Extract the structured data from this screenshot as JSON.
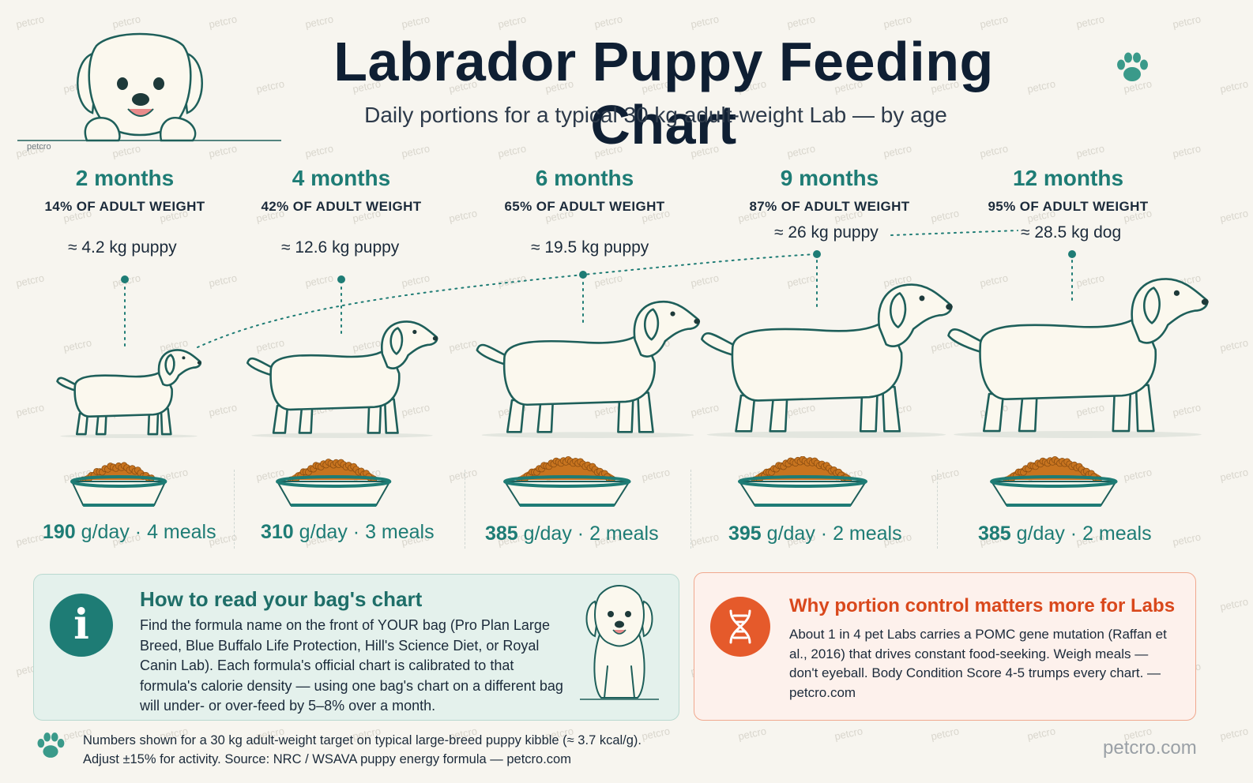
{
  "header": {
    "title": "Labrador Puppy Feeding Chart",
    "subtitle": "Daily portions for a typical 30 kg adult-weight Lab — by age",
    "logo_small": "petcro"
  },
  "stages": [
    {
      "age": "2 months",
      "pct": "14% OF ADULT WEIGHT",
      "weight": "≈ 4.2 kg puppy",
      "grams": "190",
      "unit": "g/day",
      "meals": "· 4 meals",
      "portion_fraction": 0.48
    },
    {
      "age": "4 months",
      "pct": "42% OF ADULT WEIGHT",
      "weight": "≈ 12.6 kg puppy",
      "grams": "310",
      "unit": "g/day",
      "meals": "· 3 meals",
      "portion_fraction": 0.78
    },
    {
      "age": "6 months",
      "pct": "65% OF ADULT WEIGHT",
      "weight": "≈ 19.5 kg puppy",
      "grams": "385",
      "unit": "g/day",
      "meals": "· 2 meals",
      "portion_fraction": 0.97
    },
    {
      "age": "9 months",
      "pct": "87% OF ADULT WEIGHT",
      "weight": "≈ 26 kg puppy",
      "grams": "395",
      "unit": "g/day",
      "meals": "· 2 meals",
      "portion_fraction": 1.0
    },
    {
      "age": "12 months",
      "pct": "95% OF ADULT WEIGHT",
      "weight": "≈ 28.5 kg dog",
      "grams": "385",
      "unit": "g/day",
      "meals": "· 2 meals",
      "portion_fraction": 0.97
    }
  ],
  "info_card": {
    "title": "How to read your bag's chart",
    "body": "Find the formula name on the front of YOUR bag (Pro Plan Large Breed, Blue Buffalo Life Protection, Hill's Science Diet, or Royal Canin Lab). Each formula's official chart is calibrated to that formula's calorie density — using one bag's chart on a different bag will under- or over-feed by 5–8% over a month.",
    "icon": "info-icon"
  },
  "warn_card": {
    "title": "Why portion control matters more for Labs",
    "body": "About 1 in 4 pet Labs carries a POMC gene mutation (Raffan et al., 2016) that drives constant food-seeking. Weigh meals — don't eyeball. Body Condition Score 4-5 trumps every chart. — petcro.com",
    "icon": "dna-icon"
  },
  "footer": {
    "line1": "Numbers shown for a 30 kg adult-weight target on typical large-breed puppy kibble (≈ 3.7 kcal/g).",
    "line2": "Adjust ±15% for activity. Source: NRC / WSAVA puppy energy formula — petcro.com"
  },
  "brand": "petcro.com",
  "watermark": "petcro",
  "colors": {
    "teal": "#1e7c75",
    "orange": "#e55a2b",
    "kibble": "#c8741f",
    "background": "#f7f5ef"
  }
}
